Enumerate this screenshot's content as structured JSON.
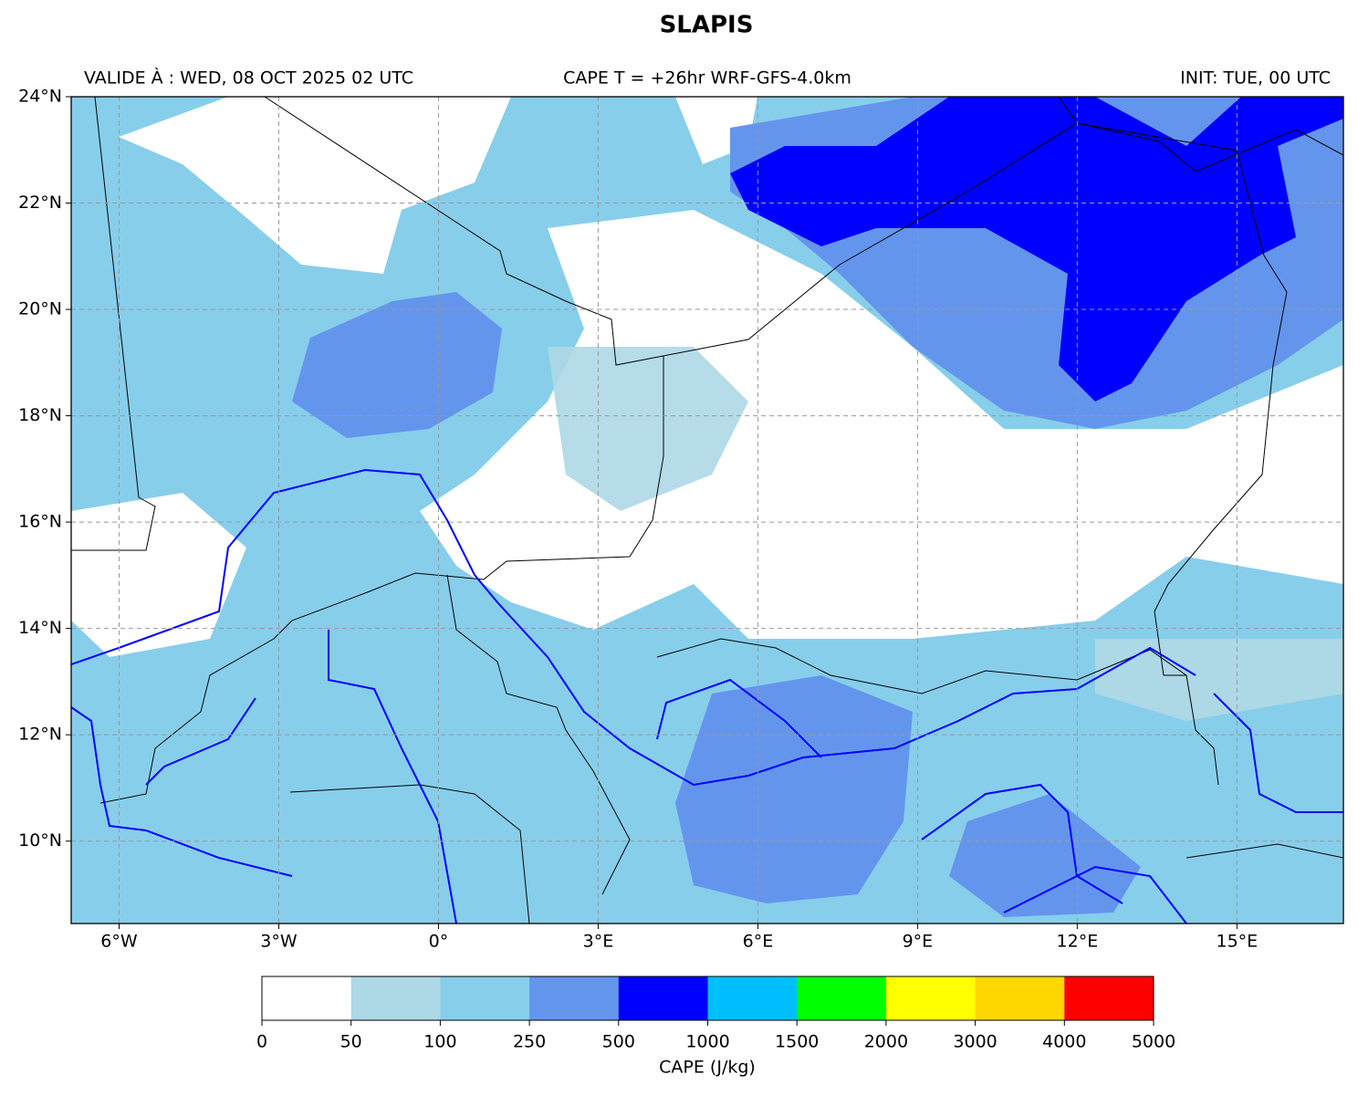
{
  "title": "SLAPIS",
  "header": {
    "left": "VALIDE À : WED, 08 OCT 2025 02 UTC",
    "center": "CAPE T = +26hr WRF-GFS-4.0km",
    "right": "INIT: TUE, 00 UTC"
  },
  "map": {
    "xlim": [
      -6.9,
      17
    ],
    "ylim": [
      8.45,
      24
    ],
    "grid": true,
    "xticks": [
      {
        "value": -6,
        "label": "6°W"
      },
      {
        "value": -3,
        "label": "3°W"
      },
      {
        "value": 0,
        "label": "0°"
      },
      {
        "value": 3,
        "label": "3°E"
      },
      {
        "value": 6,
        "label": "6°E"
      },
      {
        "value": 9,
        "label": "9°E"
      },
      {
        "value": 12,
        "label": "12°E"
      },
      {
        "value": 15,
        "label": "15°E"
      }
    ],
    "yticks": [
      {
        "value": 10,
        "label": "10°N"
      },
      {
        "value": 12,
        "label": "12°N"
      },
      {
        "value": 14,
        "label": "14°N"
      },
      {
        "value": 16,
        "label": "16°N"
      },
      {
        "value": 18,
        "label": "18°N"
      },
      {
        "value": 20,
        "label": "20°N"
      },
      {
        "value": 22,
        "label": "22°N"
      },
      {
        "value": 24,
        "label": "24°N"
      }
    ]
  },
  "colorbar": {
    "label": "CAPE (J/kg)",
    "bounds": [
      0,
      50,
      100,
      250,
      500,
      1000,
      1500,
      2000,
      3000,
      4000,
      5000
    ],
    "colors": [
      "#ffffff",
      "#add8e6",
      "#87ceeb",
      "#6495ed",
      "#0000ff",
      "#00bfff",
      "#00ff00",
      "#ffff00",
      "#ffd700",
      "#ff0000"
    ]
  }
}
